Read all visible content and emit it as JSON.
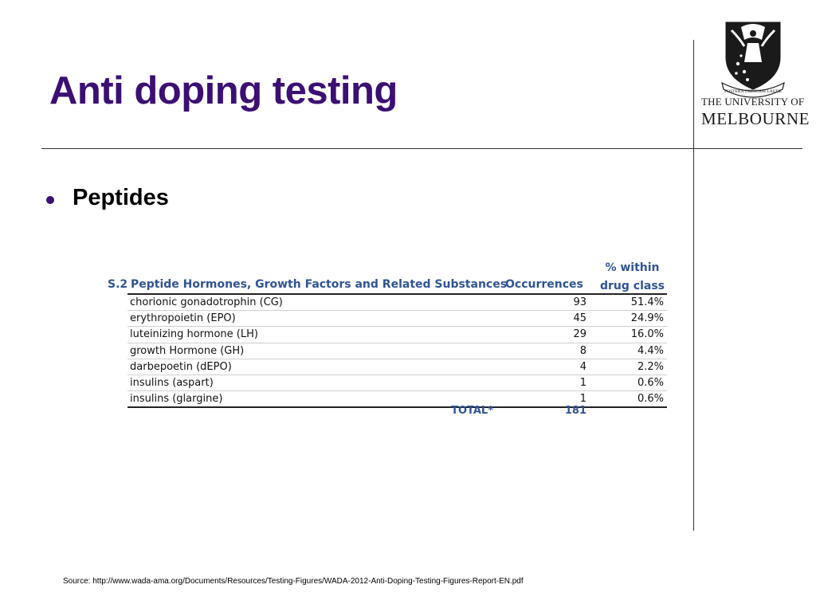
{
  "slide": {
    "title": "Anti doping testing",
    "bullet": "Peptides",
    "source": "Source: http://www.wada-ama.org/Documents/Resources/Testing-Figures/WADA-2012-Anti-Doping-Testing-Figures-Report-EN.pdf"
  },
  "logo": {
    "line1": "THE UNIVERSITY OF",
    "line2": "MELBOURNE",
    "motto": "POSTERA CRESCAM LAUDE"
  },
  "colors": {
    "title": "#3b0f73",
    "table_header": "#2f5496"
  },
  "table": {
    "code": "S.2",
    "name_header": "Peptide Hormones, Growth Factors and Related Substances",
    "occ_header": "Occurrences",
    "pct_header_line1": "% within",
    "pct_header_line2": "drug class",
    "rows": [
      {
        "substance": "chorionic gonadotrophin (CG)",
        "occurrences": "93",
        "percent": "51.4%"
      },
      {
        "substance": "erythropoietin (EPO)",
        "occurrences": "45",
        "percent": "24.9%"
      },
      {
        "substance": "luteinizing hormone (LH)",
        "occurrences": "29",
        "percent": "16.0%"
      },
      {
        "substance": "growth Hormone (GH)",
        "occurrences": "8",
        "percent": "4.4%"
      },
      {
        "substance": "darbepoetin (dEPO)",
        "occurrences": "4",
        "percent": "2.2%"
      },
      {
        "substance": "insulins (aspart)",
        "occurrences": "1",
        "percent": "0.6%"
      },
      {
        "substance": "insulins (glargine)",
        "occurrences": "1",
        "percent": "0.6%"
      }
    ],
    "total_label": "TOTAL*",
    "total_value": "181"
  }
}
